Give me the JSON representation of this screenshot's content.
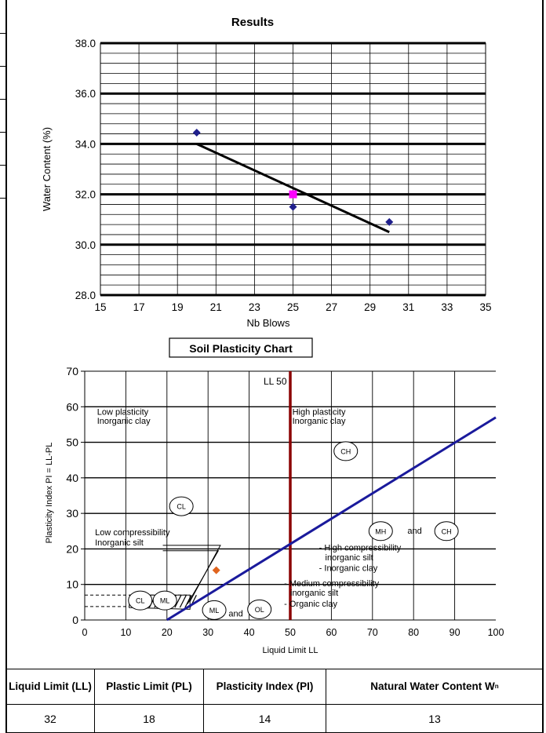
{
  "chart_data": [
    {
      "type": "scatter",
      "title": "Results",
      "xlabel": "Nb Blows",
      "ylabel": "Water Content (%)",
      "xlim": [
        15,
        35
      ],
      "ylim": [
        28.0,
        38.0
      ],
      "xticks": [
        "15",
        "17",
        "19",
        "21",
        "23",
        "25",
        "27",
        "29",
        "31",
        "33",
        "35"
      ],
      "yticks": [
        "28.0",
        "30.0",
        "32.0",
        "34.0",
        "36.0",
        "38.0"
      ],
      "series": [
        {
          "points": [
            {
              "x": 20,
              "y": 34.45
            },
            {
              "x": 25,
              "y": 31.5
            },
            {
              "x": 30,
              "y": 30.9
            }
          ],
          "color": "#1f1f8c",
          "marker": "diamond"
        },
        {
          "points": [
            {
              "x": 25,
              "y": 32.0
            }
          ],
          "color": "#ff00ff",
          "marker": "square"
        }
      ],
      "trendline": {
        "x": [
          20,
          30
        ],
        "y": [
          34.0,
          30.5
        ]
      },
      "grid": true
    },
    {
      "type": "scatter",
      "title": "Soil Plasticity Chart",
      "xlabel": "Liquid Limit LL",
      "ylabel": "Plasticity Index PI = LL-PL",
      "xlim": [
        0,
        100
      ],
      "ylim": [
        0,
        70
      ],
      "xticks": [
        "0",
        "10",
        "20",
        "30",
        "40",
        "50",
        "60",
        "70",
        "80",
        "90",
        "100"
      ],
      "yticks": [
        "0",
        "10",
        "20",
        "30",
        "40",
        "50",
        "60",
        "70"
      ],
      "a_line": {
        "x": [
          20,
          100
        ],
        "y": [
          0,
          57
        ]
      },
      "ll50_line": {
        "x": 50,
        "label": "LL  50"
      },
      "point": {
        "x": 32,
        "y": 14,
        "color": "#e0641e"
      },
      "annotations": [
        {
          "text": "Low plasticity",
          "x": 3,
          "y": 57.7
        },
        {
          "text": "Inorganic clay",
          "x": 3,
          "y": 55.2
        },
        {
          "text": "High plasticity",
          "x": 50.5,
          "y": 57.7
        },
        {
          "text": "Inorganic clay",
          "x": 50.5,
          "y": 55.2
        },
        {
          "text": "Low compressibility",
          "x": 2.5,
          "y": 23.8
        },
        {
          "text": "Inorganic silt",
          "x": 2.5,
          "y": 21.0
        },
        {
          "text": "- High compressibility",
          "x": 57,
          "y": 19.5
        },
        {
          "text": "inorganic silt",
          "x": 58.5,
          "y": 16.8
        },
        {
          "text": "- Inorganic clay",
          "x": 57,
          "y": 13.8
        },
        {
          "text": "- Medium compressibility",
          "x": 48.5,
          "y": 9.5
        },
        {
          "text": "inorganic silt",
          "x": 50,
          "y": 6.8
        },
        {
          "text": "- Organic clay",
          "x": 48.5,
          "y": 3.7
        },
        {
          "text": "and",
          "x": 78.5,
          "y": 24.3
        },
        {
          "text": "and",
          "x": 35,
          "y": 1.0
        }
      ],
      "zones": [
        {
          "label": "CH",
          "x": 63.5,
          "y": 47.5
        },
        {
          "label": "CL",
          "x": 23.5,
          "y": 32.0
        },
        {
          "label": "MH",
          "x": 72.0,
          "y": 25.0
        },
        {
          "label": "CH",
          "x": 88.0,
          "y": 25.0
        },
        {
          "label": "CL",
          "x": 13.5,
          "y": 5.5
        },
        {
          "label": "ML",
          "x": 19.5,
          "y": 5.5
        },
        {
          "label": "ML",
          "x": 31.5,
          "y": 2.8
        },
        {
          "label": "OL",
          "x": 42.5,
          "y": 3.0
        }
      ],
      "grid": true
    }
  ],
  "results_table": {
    "headers": [
      "Liquid Limit (LL)",
      "Plastic Limit (PL)",
      "Plasticity Index (PI)",
      "Natural Water Content W"
    ],
    "superscript": "n",
    "values": [
      "32",
      "18",
      "14",
      "13"
    ]
  }
}
